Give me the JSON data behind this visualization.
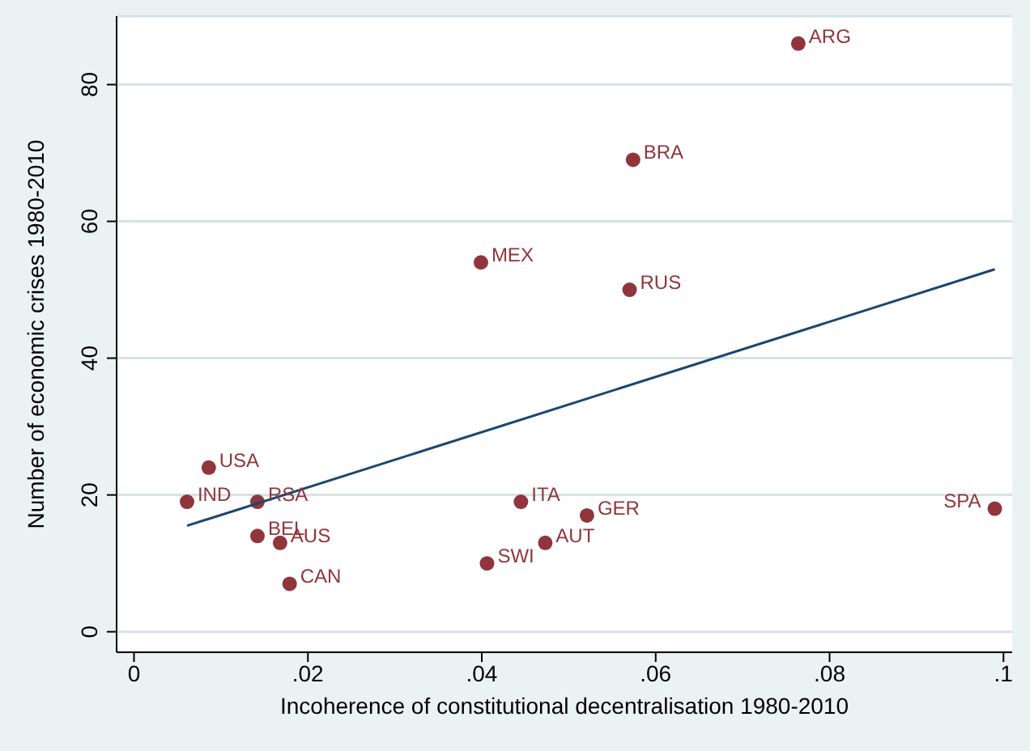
{
  "chart_data": {
    "type": "scatter",
    "xlabel": "Incoherence of constitutional decentralisation 1980-2010",
    "ylabel": "Number of economic crises 1980-2010",
    "xlim": [
      -0.002,
      0.101
    ],
    "ylim": [
      -3,
      90
    ],
    "xticks": [
      0,
      {
        "value": 0.02,
        "label": ".02"
      },
      {
        "value": 0.04,
        "label": ".04"
      },
      {
        "value": 0.06,
        "label": ".06"
      },
      {
        "value": 0.08,
        "label": ".08"
      },
      {
        "value": 0.1,
        "label": ".1"
      }
    ],
    "yticks": [
      0,
      20,
      40,
      60,
      80
    ],
    "grid": "y",
    "legend": false,
    "series": [
      {
        "color": "#90353b",
        "marker": "circle",
        "x": [
          0.0764,
          0.0574,
          0.0399,
          0.057,
          0.0086,
          0.0061,
          0.0142,
          0.0142,
          0.0168,
          0.0179,
          0.0445,
          0.0521,
          0.0473,
          0.0406,
          0.099
        ],
        "values": [
          86,
          69,
          54,
          50,
          24,
          19,
          19,
          14,
          13,
          7,
          19,
          17,
          13,
          10,
          18
        ],
        "value_labels": [
          "ARG",
          "BRA",
          "MEX",
          "RUS",
          "USA",
          "IND",
          "RSA",
          "BEL",
          "AUS",
          "CAN",
          "ITA",
          "GER",
          "AUT",
          "SWI",
          "SPA"
        ]
      },
      {
        "type": "line",
        "color": "#1a476f",
        "x": [
          0.0061,
          0.099
        ],
        "values": [
          15.5,
          53
        ]
      }
    ]
  }
}
